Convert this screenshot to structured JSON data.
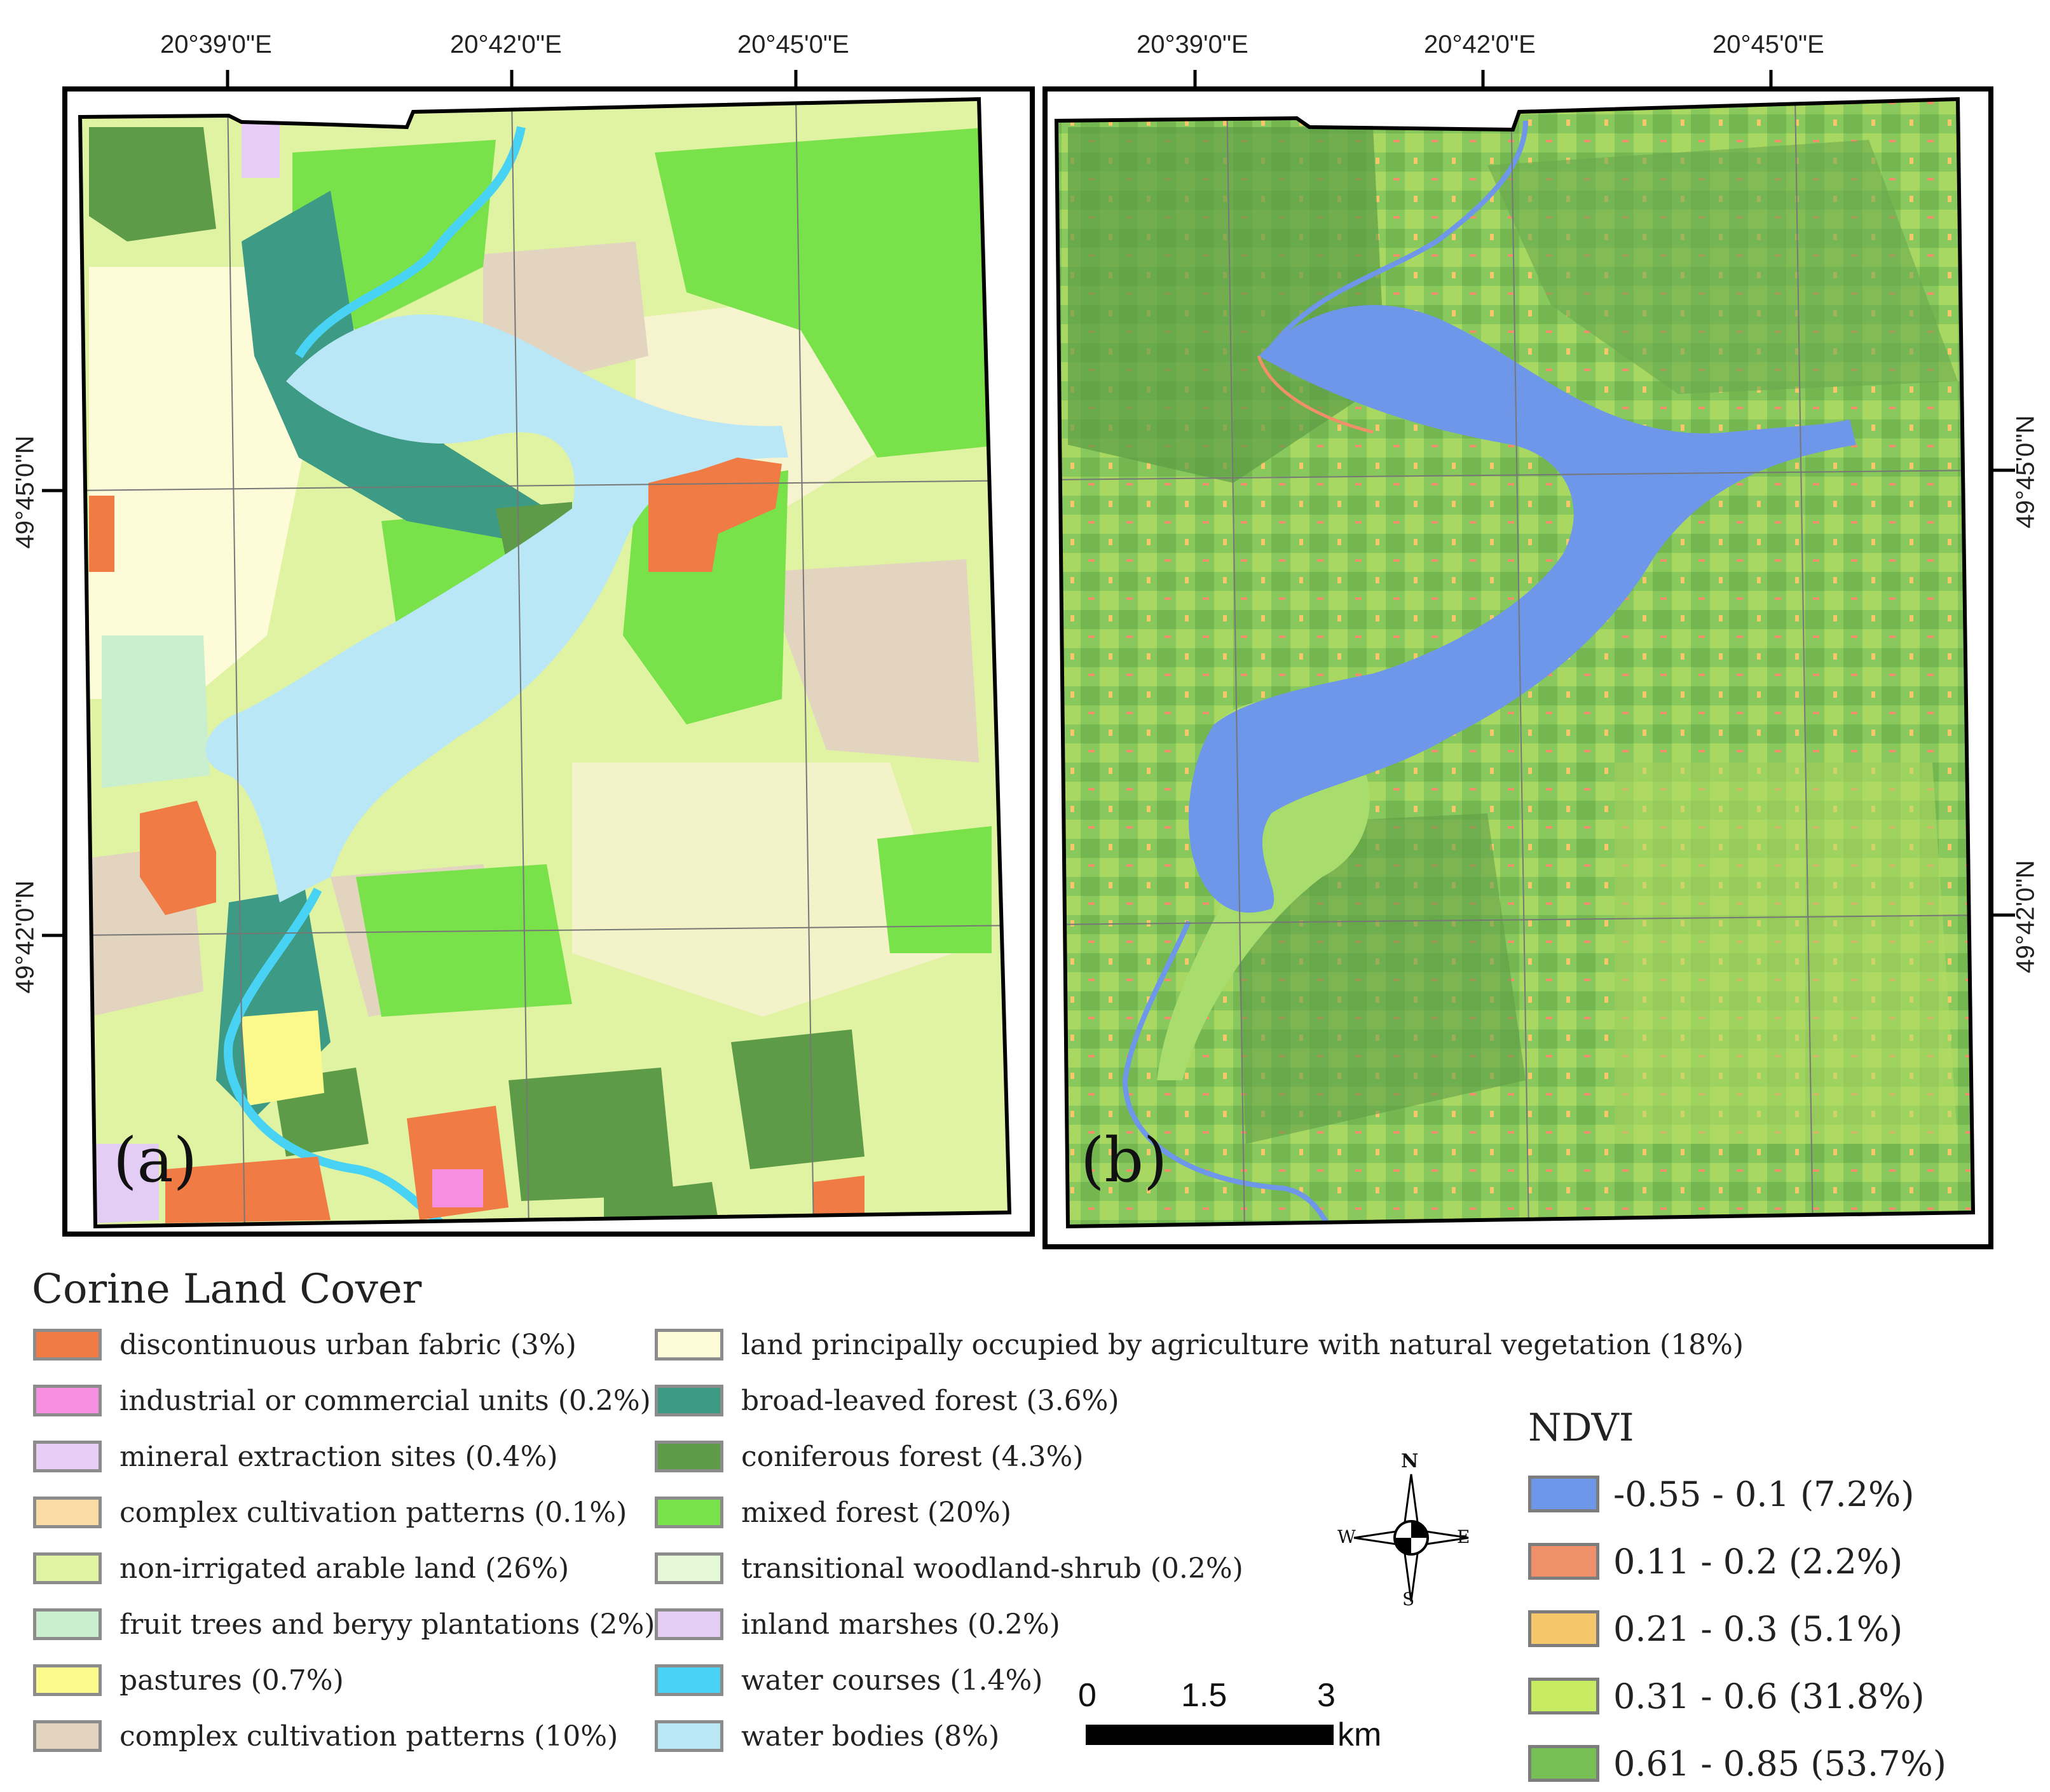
{
  "map_a": {
    "panel_label": "(a)",
    "top_ticks": [
      "20°39'0\"E",
      "20°42'0\"E",
      "20°45'0\"E"
    ],
    "left_ticks": [
      "49°45'0\"N",
      "49°42'0\"N"
    ]
  },
  "map_b": {
    "panel_label": "(b)",
    "top_ticks": [
      "20°39'0\"E",
      "20°42'0\"E",
      "20°45'0\"E"
    ],
    "right_ticks": [
      "49°45'0\"N",
      "49°42'0\"N"
    ]
  },
  "corine_legend": {
    "title": "Corine Land Cover",
    "items": [
      {
        "label": "discontinuous urban fabric (3%)",
        "color": "#f07b45"
      },
      {
        "label": "industrial or commercial units (0.2%)",
        "color": "#f78fe0"
      },
      {
        "label": "mineral extraction sites (0.4%)",
        "color": "#e8cdf6"
      },
      {
        "label": "complex cultivation patterns (0.1%)",
        "color": "#f9dba6"
      },
      {
        "label": "non-irrigated arable land (26%)",
        "color": "#dff3a3"
      },
      {
        "label": "fruit trees and beryy plantations (2%)",
        "color": "#c9efce"
      },
      {
        "label": "pastures (0.7%)",
        "color": "#fbf98c"
      },
      {
        "label": "complex cultivation patterns (10%)",
        "color": "#e2d4bf"
      },
      {
        "label": "land principally occupied by agriculture with natural vegetation (18%)",
        "color": "#fdfbd8"
      },
      {
        "label": "broad-leaved forest (3.6%)",
        "color": "#3d9a84"
      },
      {
        "label": "coniferous forest (4.3%)",
        "color": "#5e9b48"
      },
      {
        "label": "mixed forest (20%)",
        "color": "#79e24a"
      },
      {
        "label": "transitional woodland-shrub (0.2%)",
        "color": "#e5f8d8"
      },
      {
        "label": "inland marshes (0.2%)",
        "color": "#e3cdf5"
      },
      {
        "label": "water courses (1.4%)",
        "color": "#48d3f4"
      },
      {
        "label": "water bodies (8%)",
        "color": "#b9e7f6"
      }
    ]
  },
  "ndvi_legend": {
    "title": "NDVI",
    "items": [
      {
        "label": "-0.55 - 0.1 (7.2%)",
        "color": "#6e96e9"
      },
      {
        "label": "0.11 - 0.2 (2.2%)",
        "color": "#f0906a"
      },
      {
        "label": "0.21 - 0.3 (5.1%)",
        "color": "#f6c66b"
      },
      {
        "label": "0.31 - 0.6 (31.8%)",
        "color": "#c7ec61"
      },
      {
        "label": "0.61 - 0.85 (53.7%)",
        "color": "#76c055"
      }
    ]
  },
  "compass": {
    "n": "N",
    "s": "S",
    "e": "E",
    "w": "W"
  },
  "scale_bar": {
    "labels": [
      "0",
      "1.5",
      "3"
    ],
    "unit": "km"
  }
}
